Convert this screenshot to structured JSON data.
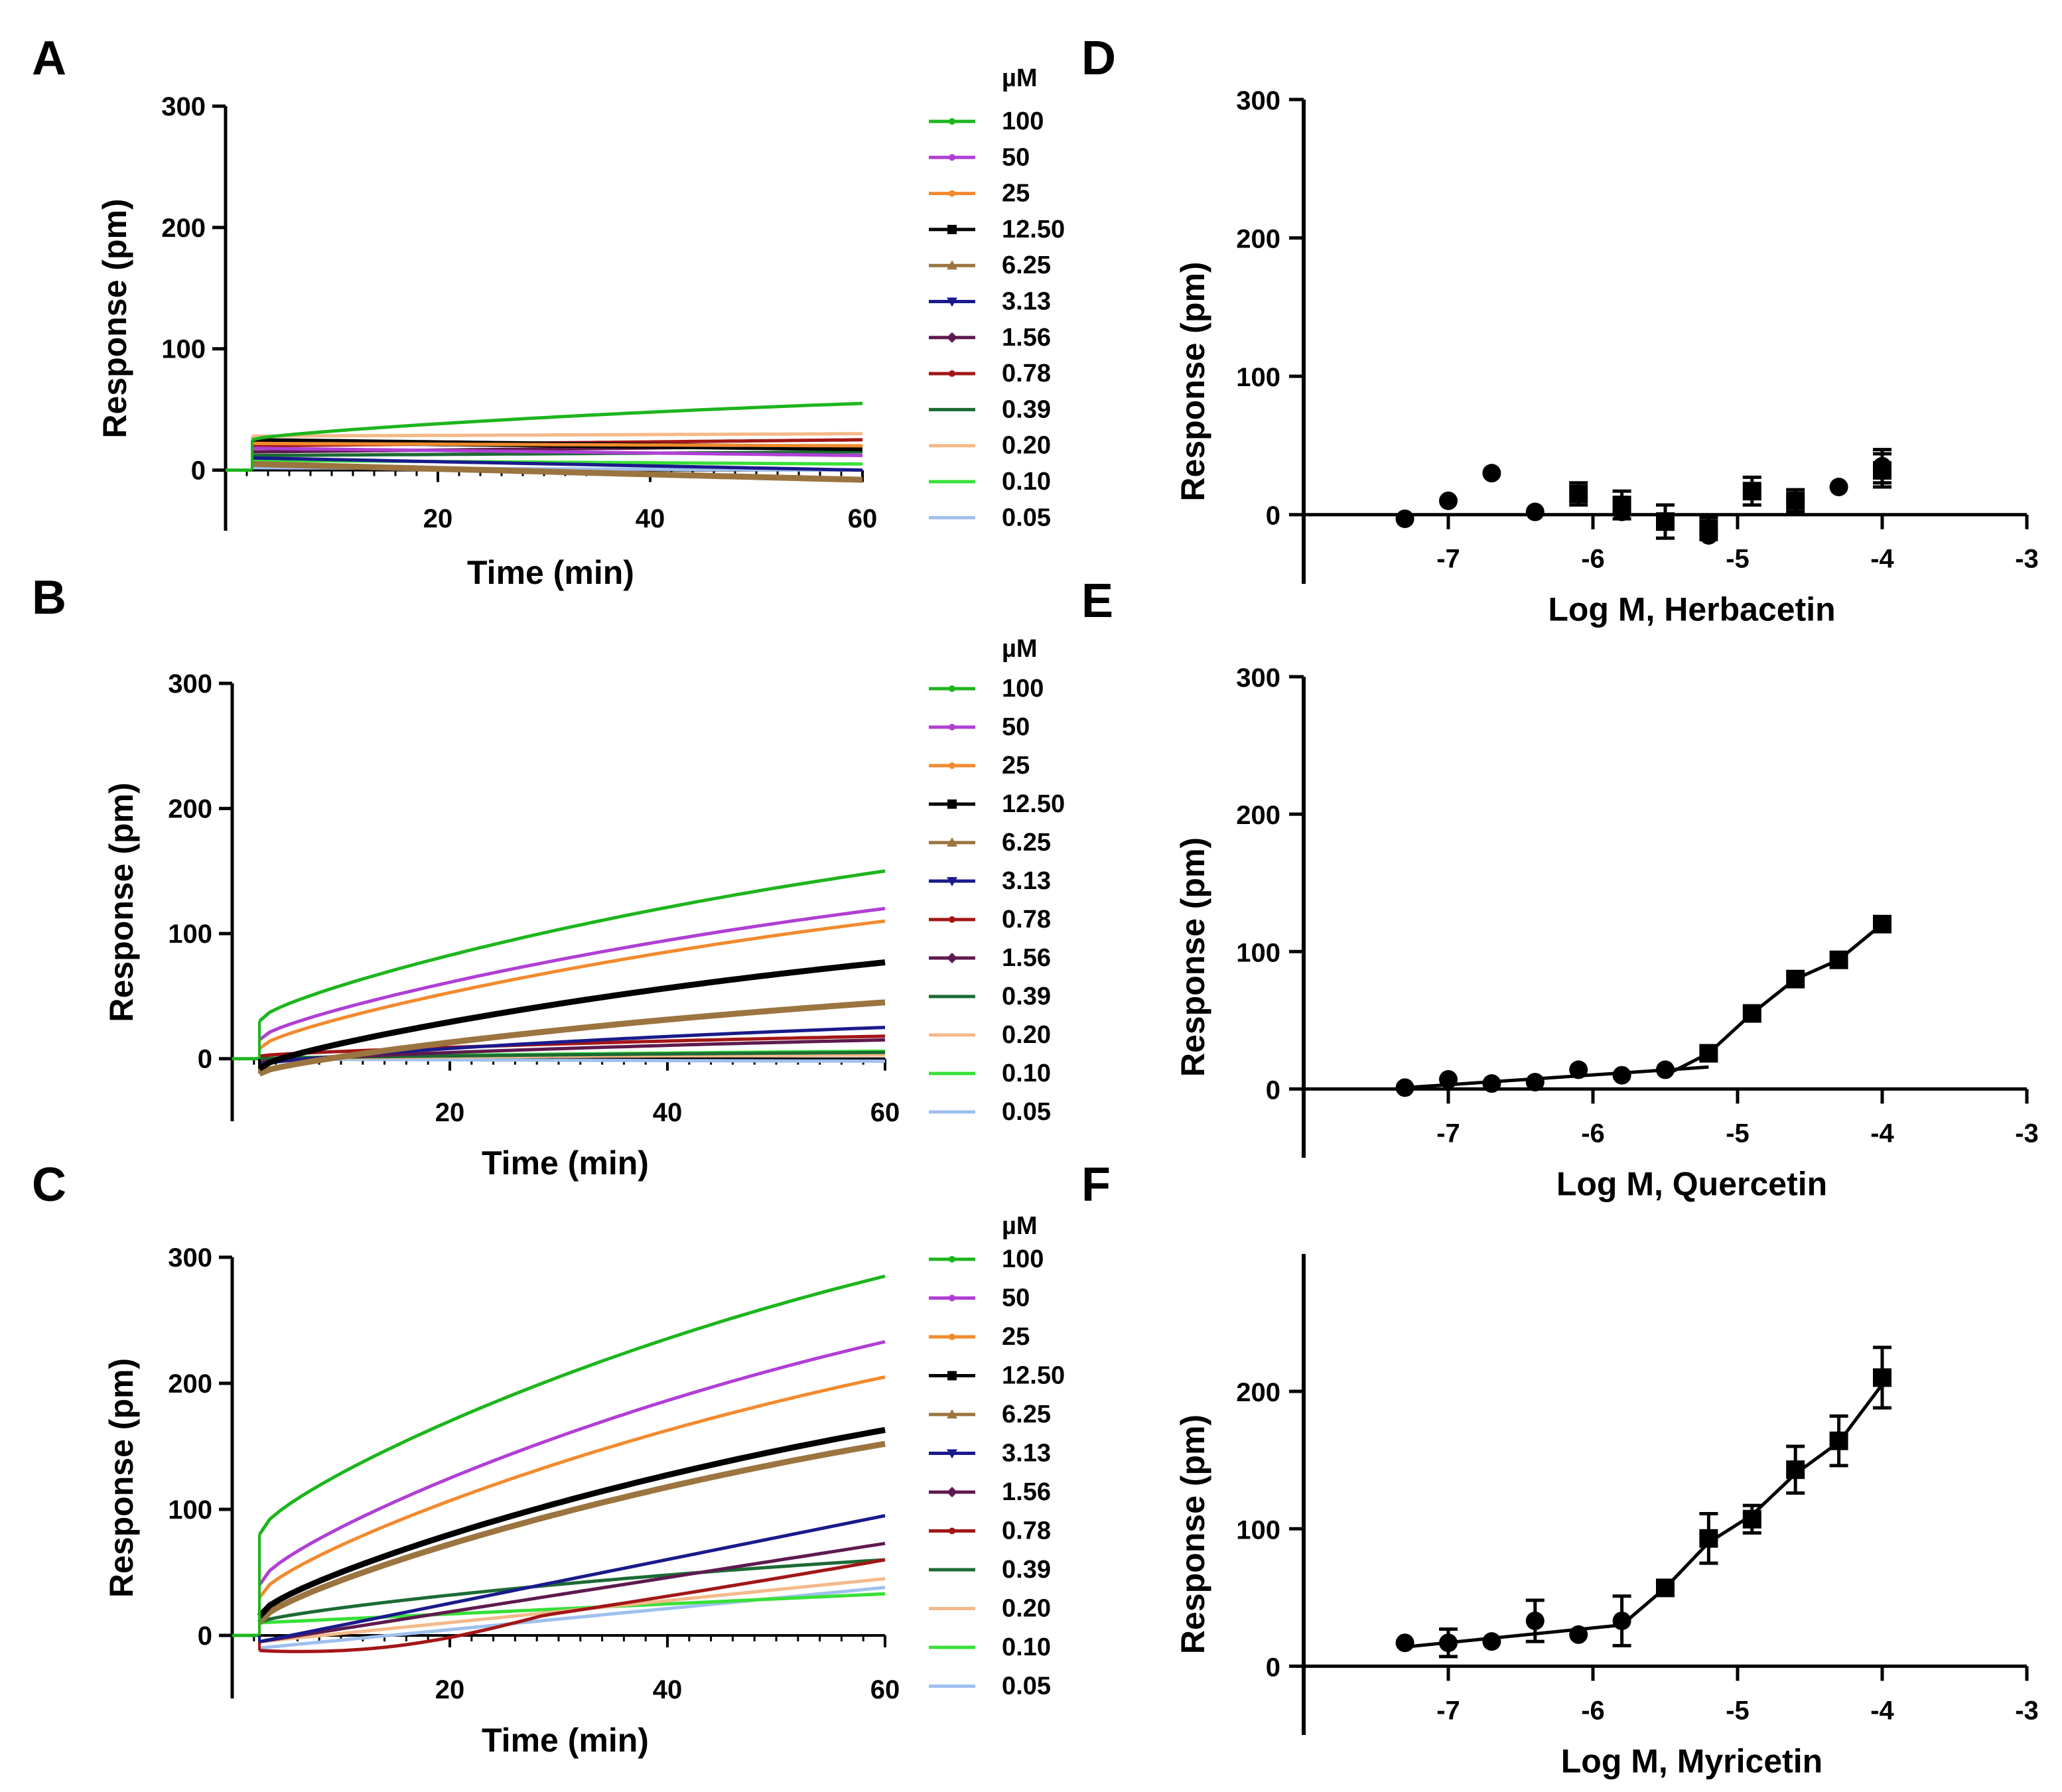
{
  "chart_data": [
    {
      "id": "A",
      "type": "line",
      "panel_label": "A",
      "xlabel": "Time (min)",
      "ylabel": "Response (pm)",
      "xlim": [
        0,
        60
      ],
      "ylim": [
        -50,
        300
      ],
      "xticks": [
        20,
        40,
        60
      ],
      "yticks": [
        0,
        100,
        200,
        300
      ],
      "legend_title": "µM",
      "legend_location": "right",
      "series": [
        {
          "name": "100",
          "color": "#1db51d",
          "marker": "dot",
          "start": 25,
          "end": 55,
          "shape": "sat"
        },
        {
          "name": "50",
          "color": "#b03fd4",
          "marker": "dot",
          "start": 18,
          "end": 12,
          "shape": "lin"
        },
        {
          "name": "25",
          "color": "#f28a2e",
          "marker": "dot",
          "start": 22,
          "end": 20,
          "shape": "lin"
        },
        {
          "name": "12.50",
          "color": "#000000",
          "marker": "square",
          "start": 24,
          "end": 18,
          "shape": "lin"
        },
        {
          "name": "6.25",
          "color": "#9b7440",
          "marker": "triangle",
          "start": 5,
          "end": -8,
          "shape": "lin"
        },
        {
          "name": "3.13",
          "color": "#1a1a8c",
          "marker": "triangle-down",
          "start": 10,
          "end": 0,
          "shape": "lin"
        },
        {
          "name": "1.56",
          "color": "#5e1a4e",
          "marker": "diamond",
          "start": 15,
          "end": 20,
          "shape": "lin"
        },
        {
          "name": "0.78",
          "color": "#a31616",
          "marker": "dot",
          "start": 20,
          "end": 25,
          "shape": "lin"
        },
        {
          "name": "0.39",
          "color": "#1c6b34",
          "marker": "plus",
          "start": 12,
          "end": 15,
          "shape": "lin"
        },
        {
          "name": "0.20",
          "color": "#f4b98a",
          "marker": "none",
          "start": 28,
          "end": 30,
          "shape": "lin"
        },
        {
          "name": "0.10",
          "color": "#38e038",
          "marker": "none",
          "start": 8,
          "end": 5,
          "shape": "lin"
        },
        {
          "name": "0.05",
          "color": "#9fc0ee",
          "marker": "none",
          "start": 2,
          "end": 0,
          "shape": "lin"
        }
      ]
    },
    {
      "id": "B",
      "type": "line",
      "panel_label": "B",
      "xlabel": "Time (min)",
      "ylabel": "Response (pm)",
      "xlim": [
        0,
        60
      ],
      "ylim": [
        -50,
        300
      ],
      "xticks": [
        20,
        40,
        60
      ],
      "yticks": [
        0,
        100,
        200,
        300
      ],
      "legend_title": "µM",
      "legend_location": "right",
      "series": [
        {
          "name": "100",
          "color": "#1db51d",
          "marker": "dot",
          "start": 30,
          "end": 150,
          "shape": "sat"
        },
        {
          "name": "50",
          "color": "#b03fd4",
          "marker": "dot",
          "start": 15,
          "end": 120,
          "shape": "sat"
        },
        {
          "name": "25",
          "color": "#f28a2e",
          "marker": "dot",
          "start": 8,
          "end": 110,
          "shape": "sat"
        },
        {
          "name": "12.50",
          "color": "#000000",
          "marker": "square",
          "start": -8,
          "end": 77,
          "shape": "sat"
        },
        {
          "name": "6.25",
          "color": "#9b7440",
          "marker": "triangle",
          "start": -12,
          "end": 45,
          "shape": "sat"
        },
        {
          "name": "3.13",
          "color": "#1a1a8c",
          "marker": "triangle-down",
          "start": -5,
          "end": 25,
          "shape": "sat"
        },
        {
          "name": "0.78",
          "color": "#a31616",
          "marker": "dot",
          "start": 2,
          "end": 18,
          "shape": "sat"
        },
        {
          "name": "1.56",
          "color": "#5e1a4e",
          "marker": "diamond",
          "start": -3,
          "end": 15,
          "shape": "sat"
        },
        {
          "name": "0.39",
          "color": "#1c6b34",
          "marker": "plus",
          "start": 0,
          "end": 5,
          "shape": "sat"
        },
        {
          "name": "0.20",
          "color": "#f4b98a",
          "marker": "none",
          "start": 0,
          "end": 3,
          "shape": "sat"
        },
        {
          "name": "0.10",
          "color": "#38e038",
          "marker": "none",
          "start": 0,
          "end": 6,
          "shape": "sat"
        },
        {
          "name": "0.05",
          "color": "#9fc0ee",
          "marker": "none",
          "start": 0,
          "end": -2,
          "shape": "sat"
        }
      ]
    },
    {
      "id": "C",
      "type": "line",
      "panel_label": "C",
      "xlabel": "Time (min)",
      "ylabel": "Response (pm)",
      "xlim": [
        0,
        60
      ],
      "ylim": [
        -50,
        300
      ],
      "xticks": [
        20,
        40,
        60
      ],
      "yticks": [
        0,
        100,
        200,
        300
      ],
      "legend_title": "µM",
      "legend_location": "right",
      "series": [
        {
          "name": "100",
          "color": "#1db51d",
          "marker": "dot",
          "start": 80,
          "end": 285,
          "shape": "sat"
        },
        {
          "name": "50",
          "color": "#b03fd4",
          "marker": "dot",
          "start": 40,
          "end": 233,
          "shape": "sat"
        },
        {
          "name": "25",
          "color": "#f28a2e",
          "marker": "dot",
          "start": 30,
          "end": 205,
          "shape": "sat"
        },
        {
          "name": "12.50",
          "color": "#000000",
          "marker": "square",
          "start": 15,
          "end": 163,
          "shape": "sat"
        },
        {
          "name": "6.25",
          "color": "#9b7440",
          "marker": "triangle",
          "start": 10,
          "end": 152,
          "shape": "sat"
        },
        {
          "name": "3.13",
          "color": "#1a1a8c",
          "marker": "triangle-down",
          "start": -5,
          "end": 95,
          "shape": "lin"
        },
        {
          "name": "1.56",
          "color": "#5e1a4e",
          "marker": "diamond",
          "start": -5,
          "end": 73,
          "shape": "lin"
        },
        {
          "name": "0.78",
          "color": "#a31616",
          "marker": "dot",
          "start": -12,
          "end": 60,
          "shape": "dip"
        },
        {
          "name": "0.39",
          "color": "#1c6b34",
          "marker": "plus",
          "start": 10,
          "end": 60,
          "shape": "sat"
        },
        {
          "name": "0.20",
          "color": "#f4b98a",
          "marker": "none",
          "start": -5,
          "end": 45,
          "shape": "lin"
        },
        {
          "name": "0.10",
          "color": "#38e038",
          "marker": "none",
          "start": 10,
          "end": 33,
          "shape": "lin"
        },
        {
          "name": "0.05",
          "color": "#9fc0ee",
          "marker": "none",
          "start": -10,
          "end": 38,
          "shape": "lin"
        }
      ]
    },
    {
      "id": "D",
      "type": "scatter",
      "panel_label": "D",
      "xlabel": "Log M, Herbacetin",
      "ylabel": "Response (pm)",
      "xlim": [
        -8,
        -3
      ],
      "ylim": [
        -50,
        300
      ],
      "xticks": [
        -7,
        -6,
        -5,
        -4,
        -3
      ],
      "yticks": [
        0,
        100,
        200,
        300
      ],
      "circles": [
        {
          "x": -7.3,
          "y": -3,
          "err": 0
        },
        {
          "x": -7.0,
          "y": 10,
          "err": 0
        },
        {
          "x": -6.7,
          "y": 30,
          "err": 0
        },
        {
          "x": -6.4,
          "y": 2,
          "err": 0
        },
        {
          "x": -5.8,
          "y": 2,
          "err": 0
        },
        {
          "x": -5.2,
          "y": -15,
          "err": 0
        },
        {
          "x": -4.6,
          "y": 10,
          "err": 0
        },
        {
          "x": -4.3,
          "y": 20,
          "err": 0
        },
        {
          "x": -4.0,
          "y": 35,
          "err": 12
        }
      ],
      "squares": [
        {
          "x": -6.1,
          "y": 15,
          "err": 8
        },
        {
          "x": -5.8,
          "y": 7,
          "err": 10
        },
        {
          "x": -5.5,
          "y": -5,
          "err": 12
        },
        {
          "x": -5.2,
          "y": -10,
          "err": 8
        },
        {
          "x": -4.9,
          "y": 17,
          "err": 10
        },
        {
          "x": -4.6,
          "y": 10,
          "err": 8
        },
        {
          "x": -4.0,
          "y": 32,
          "err": 12
        }
      ],
      "fit_lines": []
    },
    {
      "id": "E",
      "type": "scatter",
      "panel_label": "E",
      "xlabel": "Log M,  Quercetin",
      "ylabel": "Response (pm)",
      "xlim": [
        -8,
        -3
      ],
      "ylim": [
        -50,
        300
      ],
      "xticks": [
        -7,
        -6,
        -5,
        -4,
        -3
      ],
      "yticks": [
        0,
        100,
        200,
        300
      ],
      "circles": [
        {
          "x": -7.3,
          "y": 1,
          "err": 0
        },
        {
          "x": -7.0,
          "y": 7,
          "err": 0
        },
        {
          "x": -6.7,
          "y": 4,
          "err": 0
        },
        {
          "x": -6.4,
          "y": 5,
          "err": 0
        },
        {
          "x": -6.1,
          "y": 14,
          "err": 0
        },
        {
          "x": -5.8,
          "y": 10,
          "err": 0
        },
        {
          "x": -5.5,
          "y": 14,
          "err": 0
        }
      ],
      "squares": [
        {
          "x": -5.2,
          "y": 26,
          "err": 0
        },
        {
          "x": -4.9,
          "y": 55,
          "err": 0
        },
        {
          "x": -4.6,
          "y": 80,
          "err": 0
        },
        {
          "x": -4.3,
          "y": 94,
          "err": 0
        },
        {
          "x": -4.0,
          "y": 120,
          "err": 0
        }
      ],
      "fit_lines": [
        {
          "x": [
            -7.3,
            -5.2
          ],
          "y": [
            1,
            16
          ]
        },
        {
          "x": [
            -5.5,
            -5.2,
            -4.9,
            -4.6,
            -4.3,
            -4.0
          ],
          "y": [
            10,
            26,
            55,
            80,
            94,
            120
          ]
        }
      ]
    },
    {
      "id": "F",
      "type": "scatter",
      "panel_label": "F",
      "xlabel": "Log M,  Myricetin",
      "ylabel": "Response (pm)",
      "xlim": [
        -8,
        -3
      ],
      "ylim": [
        -50,
        300
      ],
      "xticks": [
        -7,
        -6,
        -5,
        -4,
        -3
      ],
      "yticks": [
        0,
        100,
        200
      ],
      "circles": [
        {
          "x": -7.3,
          "y": 17,
          "err": 0
        },
        {
          "x": -7.0,
          "y": 17,
          "err": 10
        },
        {
          "x": -6.7,
          "y": 18,
          "err": 0
        },
        {
          "x": -6.4,
          "y": 33,
          "err": 15
        },
        {
          "x": -6.1,
          "y": 23,
          "err": 0
        },
        {
          "x": -5.8,
          "y": 33,
          "err": 18
        }
      ],
      "squares": [
        {
          "x": -5.5,
          "y": 57,
          "err": 0
        },
        {
          "x": -5.2,
          "y": 93,
          "err": 18
        },
        {
          "x": -4.9,
          "y": 107,
          "err": 10
        },
        {
          "x": -4.6,
          "y": 143,
          "err": 17
        },
        {
          "x": -4.3,
          "y": 164,
          "err": 18
        },
        {
          "x": -4.0,
          "y": 210,
          "err": 22
        }
      ],
      "fit_lines": [
        {
          "x": [
            -7.3,
            -5.8
          ],
          "y": [
            14,
            30
          ]
        },
        {
          "x": [
            -5.8,
            -5.5,
            -5.2,
            -4.9,
            -4.6,
            -4.3,
            -4.0
          ],
          "y": [
            30,
            57,
            90,
            110,
            140,
            163,
            205
          ]
        }
      ]
    }
  ]
}
